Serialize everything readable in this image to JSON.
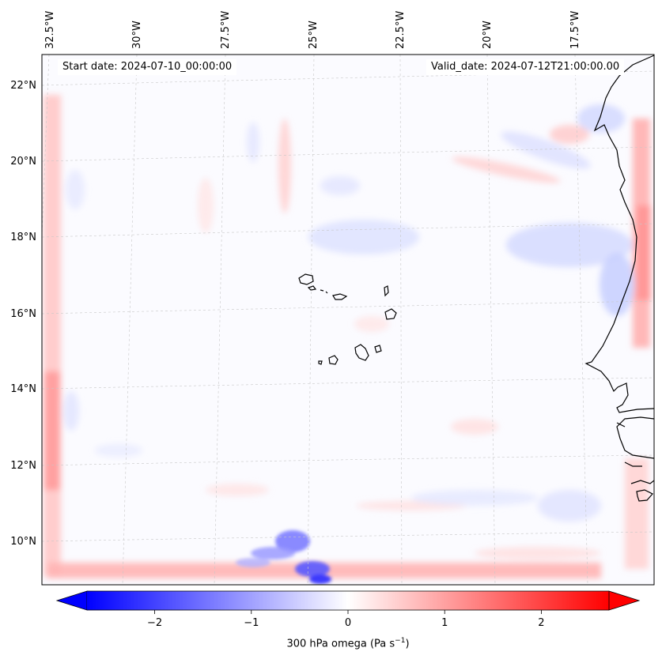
{
  "map": {
    "start_date": "Start date: 2024-07-10_00:00:00",
    "valid_date": "Valid_date: 2024-07-12T21:00:00.00",
    "lon_labels": [
      "32.5°W",
      "30°W",
      "27.5°W",
      "25°W",
      "22.5°W",
      "20°W",
      "17.5°W"
    ],
    "lat_labels": [
      "22°N",
      "20°N",
      "18°N",
      "16°N",
      "14°N",
      "12°N",
      "10°N"
    ],
    "gridlines": true
  },
  "colorbar": {
    "ticks": [
      "−2",
      "−1",
      "0",
      "1",
      "2"
    ],
    "tick_values": [
      -2,
      -1,
      0,
      1,
      2
    ],
    "vmin": -2.7,
    "vmax": 2.7,
    "label_text": "300 hPa omega (Pa s",
    "label_sup": "−1",
    "label_end": ")",
    "extend": "both",
    "colormap": "bwr",
    "low_color": "#0000ff",
    "mid_color": "#ffffff",
    "high_color": "#ff0000"
  }
}
